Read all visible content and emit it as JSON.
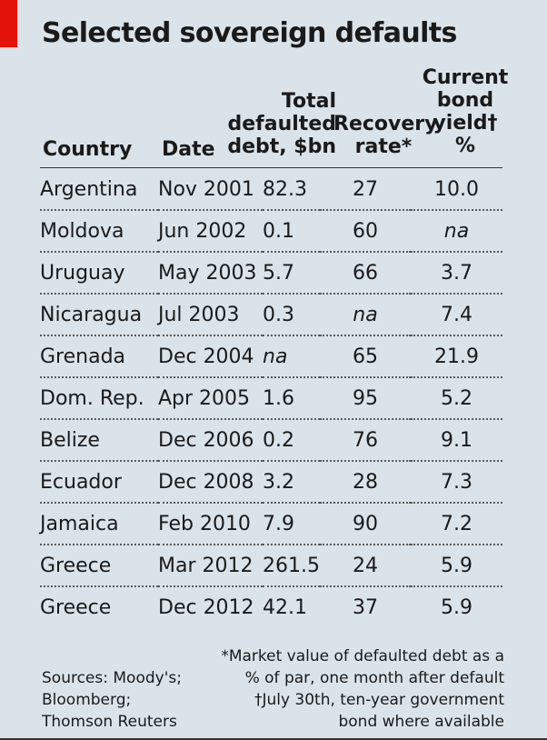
{
  "title": "Selected sovereign defaults",
  "headers": {
    "country": "Country",
    "date": "Date",
    "debt": [
      "Total",
      "defaulted",
      "debt, $bn"
    ],
    "recovery": [
      "Recovery",
      "rate*"
    ],
    "yield": [
      "Current",
      "bond",
      "yield†",
      "%"
    ]
  },
  "chart_data": {
    "type": "table",
    "title": "Selected sovereign defaults",
    "columns": [
      "Country",
      "Date",
      "Total defaulted debt, $bn",
      "Recovery rate*",
      "Current bond yield† %"
    ],
    "rows": [
      [
        "Argentina",
        "Nov 2001",
        "82.3",
        "27",
        "10.0"
      ],
      [
        "Moldova",
        "Jun 2002",
        "0.1",
        "60",
        "na"
      ],
      [
        "Uruguay",
        "May 2003",
        "5.7",
        "66",
        "3.7"
      ],
      [
        "Nicaragua",
        "Jul 2003",
        "0.3",
        "na",
        "7.4"
      ],
      [
        "Grenada",
        "Dec 2004",
        "na",
        "65",
        "21.9"
      ],
      [
        "Dom. Rep.",
        "Apr 2005",
        "1.6",
        "95",
        "5.2"
      ],
      [
        "Belize",
        "Dec 2006",
        "0.2",
        "76",
        "9.1"
      ],
      [
        "Ecuador",
        "Dec 2008",
        "3.2",
        "28",
        "7.3"
      ],
      [
        "Jamaica",
        "Feb 2010",
        "7.9",
        "90",
        "7.2"
      ],
      [
        "Greece",
        "Mar 2012",
        "261.5",
        "24",
        "5.9"
      ],
      [
        "Greece",
        "Dec 2012",
        "42.1",
        "37",
        "5.9"
      ]
    ]
  },
  "sources": [
    "Sources: Moody's;",
    "Bloomberg;",
    "Thomson Reuters"
  ],
  "notes": [
    "*Market value of defaulted debt as a",
    "% of par, one month after default",
    "†July 30th, ten-year government",
    "bond where available"
  ],
  "colors": {
    "background": "#dbe3ea",
    "accent": "#e3120b"
  }
}
